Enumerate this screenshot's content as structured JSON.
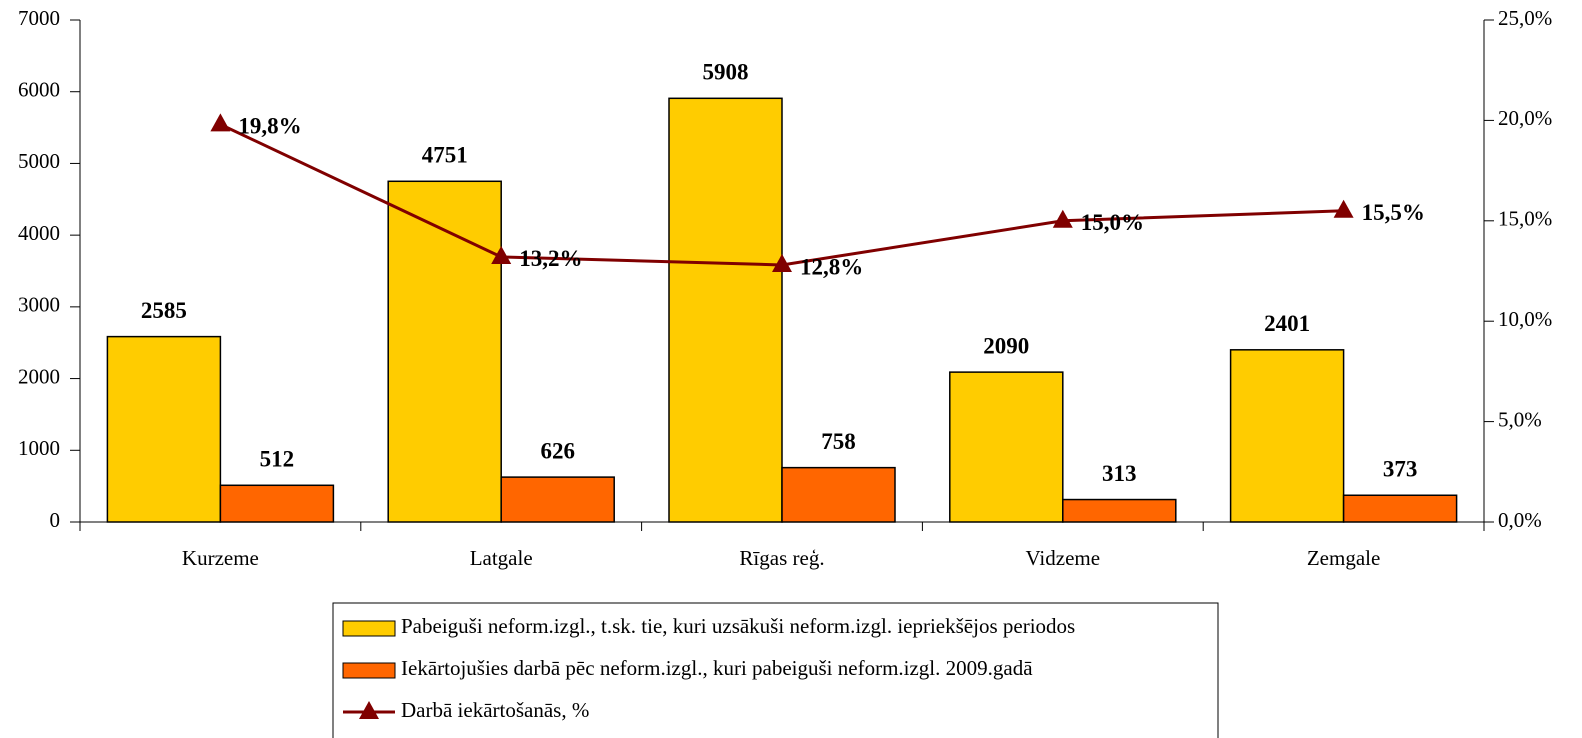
{
  "chart_data": {
    "type": "bar",
    "categories": [
      "Kurzeme",
      "Latgale",
      "Rīgas reģ.",
      "Vidzeme",
      "Zemgale"
    ],
    "series": [
      {
        "name": "Pabeiguši neform.izgl., t.sk. tie, kuri uzsākuši neform.izgl. iepriekšējos periodos",
        "color": "#FFCC00",
        "values": [
          2585,
          4751,
          5908,
          2090,
          2401
        ]
      },
      {
        "name": "Iekārtojušies darbā pēc neform.izgl., kuri pabeiguši neform.izgl. 2009.gadā",
        "color": "#FF6600",
        "values": [
          512,
          626,
          758,
          313,
          373
        ]
      },
      {
        "name": "Darbā iekārtošanās, %",
        "color": "#800000",
        "type": "line",
        "marker": "triangle",
        "axis": "y2",
        "values": [
          19.8,
          13.2,
          12.8,
          15.0,
          15.5
        ],
        "value_labels": [
          "19,8%",
          "13,2%",
          "12,8%",
          "15,0%",
          "15,5%"
        ]
      }
    ],
    "ylim": [
      0,
      7000
    ],
    "yticks": [
      0,
      1000,
      2000,
      3000,
      4000,
      5000,
      6000,
      7000
    ],
    "y2lim": [
      0,
      25
    ],
    "y2ticks": [
      {
        "value": 0,
        "label": "0,0%"
      },
      {
        "value": 5,
        "label": "5,0%"
      },
      {
        "value": 10,
        "label": "10,0%"
      },
      {
        "value": 15,
        "label": "15,0%"
      },
      {
        "value": 20,
        "label": "20,0%"
      },
      {
        "value": 25,
        "label": "25,0%"
      }
    ],
    "legend": "bottom",
    "grid": false
  }
}
